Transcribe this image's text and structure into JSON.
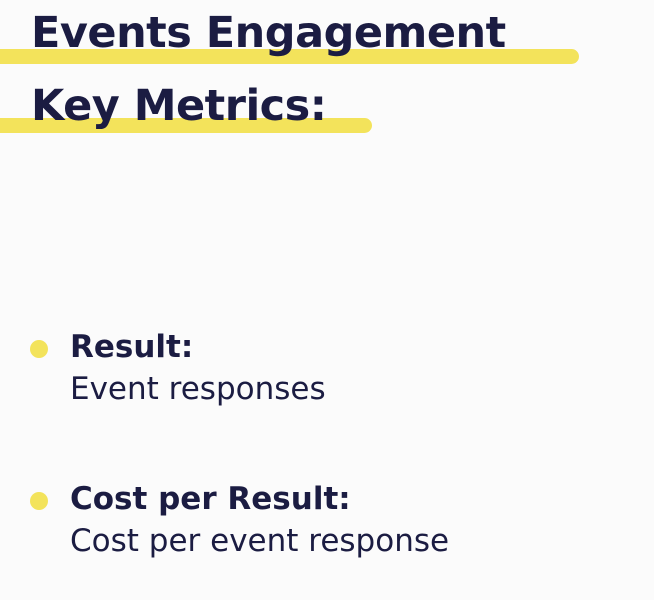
{
  "title": {
    "line1": "Events Engagement",
    "line2": "Key Metrics:"
  },
  "colors": {
    "accent": "#f3e35b",
    "text": "#1b1c42",
    "background": "#fbfbfb"
  },
  "metrics": [
    {
      "label": "Result:",
      "description": "Event responses"
    },
    {
      "label": "Cost per Result:",
      "description": "Cost per event response"
    }
  ]
}
